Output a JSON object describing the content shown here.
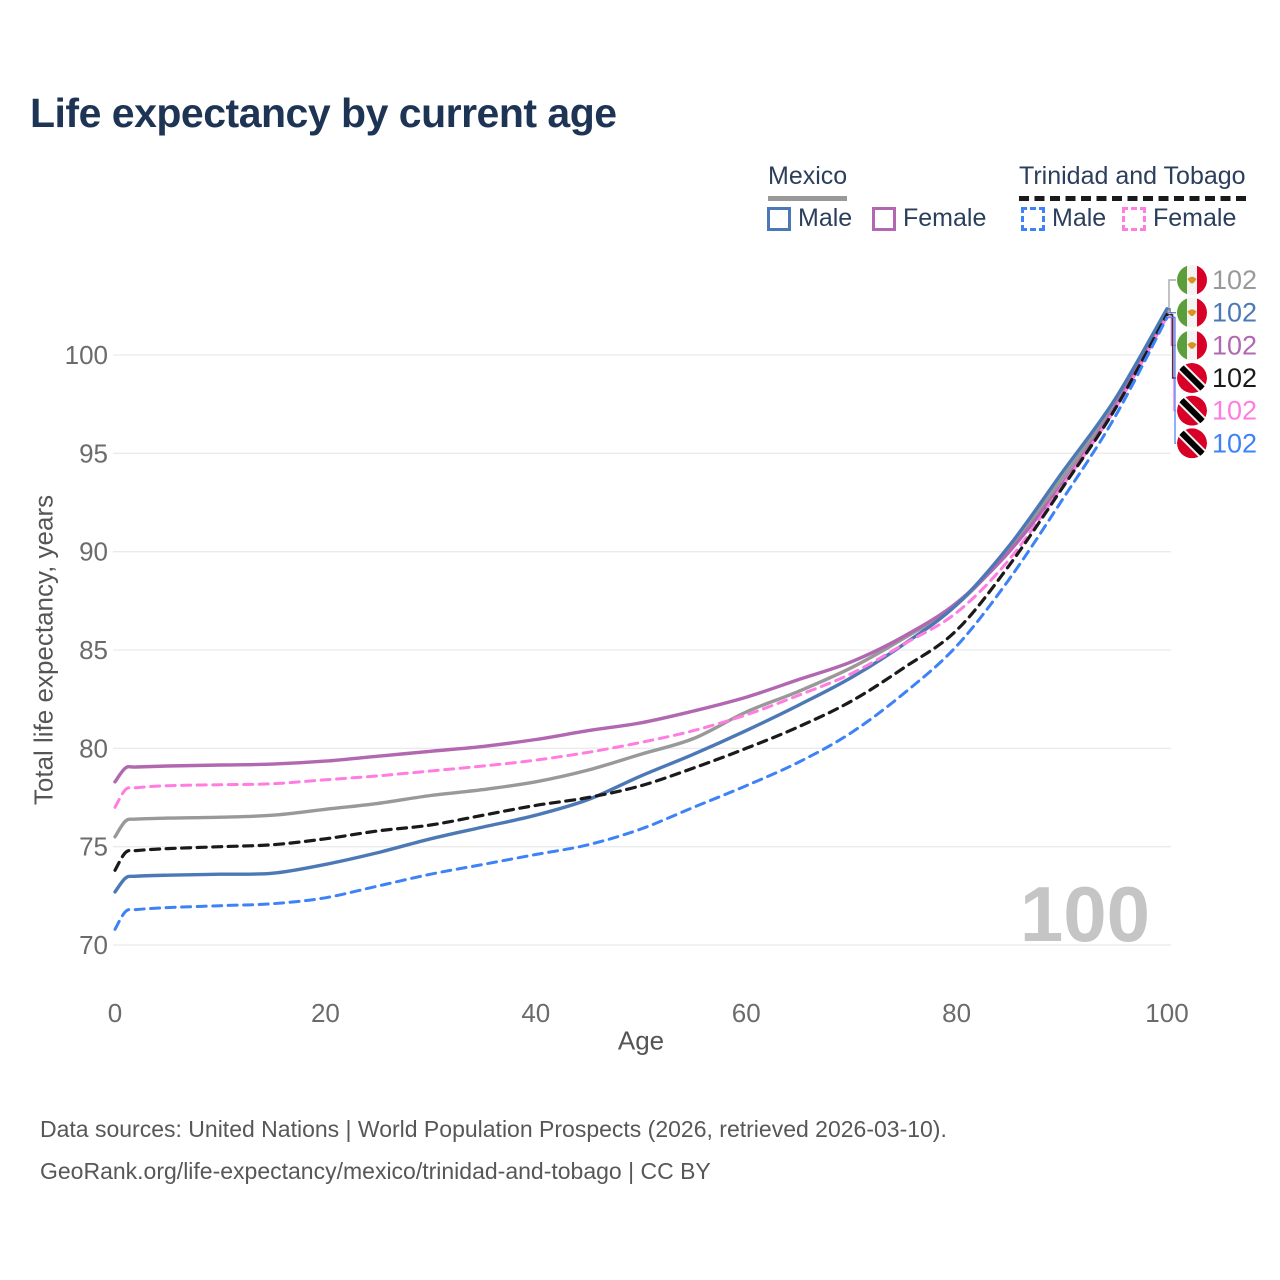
{
  "title": "Life expectancy by current age",
  "legend": {
    "mexico": {
      "label": "Mexico",
      "male": "Male",
      "female": "Female"
    },
    "trinidad": {
      "label": "Trinidad and Tobago",
      "male": "Male",
      "female": "Female"
    }
  },
  "watermark": "100",
  "footer": {
    "line1": "Data sources: United Nations | World Population Prospects (2026, retrieved 2026-03-10).",
    "line2": "GeoRank.org/life-expectancy/mexico/trinidad-and-tobago | CC BY"
  },
  "chart_data": {
    "type": "line",
    "title": "Life expectancy by current age",
    "xlabel": "Age",
    "ylabel": "Total life expectancy, years",
    "xlim": [
      0,
      100
    ],
    "ylim": [
      70,
      102.5
    ],
    "x_ticks": [
      0,
      20,
      40,
      60,
      80,
      100
    ],
    "y_ticks": [
      70,
      75,
      80,
      85,
      90,
      95,
      100
    ],
    "grid": "horizontal",
    "legend_position": "top-right",
    "x": [
      0,
      1,
      2,
      5,
      10,
      15,
      20,
      25,
      30,
      35,
      40,
      45,
      50,
      55,
      60,
      65,
      70,
      75,
      80,
      85,
      90,
      95,
      100
    ],
    "series": [
      {
        "name": "Mexico — Both sexes",
        "country": "Mexico",
        "sex": "both",
        "style": "solid",
        "color": "#999999",
        "width": 3.4,
        "flag": "mexico",
        "end_label": "102",
        "label_slot": 0,
        "values": [
          75.5,
          76.3,
          76.4,
          76.45,
          76.5,
          76.6,
          76.9,
          77.2,
          77.6,
          77.9,
          78.3,
          78.9,
          79.7,
          80.5,
          81.85,
          82.9,
          84.1,
          85.6,
          87.3,
          90.1,
          93.7,
          97.5,
          102.25
        ]
      },
      {
        "name": "Mexico — Female",
        "country": "Mexico",
        "sex": "female",
        "style": "solid",
        "color": "#b168b1",
        "width": 3.4,
        "flag": "mexico",
        "end_label": "102",
        "label_slot": 2,
        "values": [
          78.3,
          79.0,
          79.05,
          79.1,
          79.15,
          79.2,
          79.35,
          79.6,
          79.85,
          80.1,
          80.45,
          80.9,
          81.3,
          81.9,
          82.6,
          83.5,
          84.4,
          85.7,
          87.4,
          90.0,
          93.4,
          97.3,
          102.15
        ]
      },
      {
        "name": "Mexico — Male",
        "country": "Mexico",
        "sex": "male",
        "style": "solid",
        "color": "#4c79b5",
        "width": 3.4,
        "flag": "mexico",
        "end_label": "102",
        "label_slot": 1,
        "values": [
          72.7,
          73.4,
          73.5,
          73.55,
          73.6,
          73.65,
          74.1,
          74.7,
          75.4,
          76.0,
          76.6,
          77.4,
          78.6,
          79.7,
          80.9,
          82.2,
          83.6,
          85.3,
          87.3,
          90.3,
          94.0,
          97.7,
          102.35
        ]
      },
      {
        "name": "Trinidad and Tobago — Female",
        "country": "Trinidad and Tobago",
        "sex": "female",
        "style": "dashed",
        "color": "#ff7de1",
        "width": 3,
        "flag": "trinidad",
        "end_label": "102",
        "label_slot": 4,
        "values": [
          77.0,
          77.9,
          78.0,
          78.1,
          78.15,
          78.2,
          78.4,
          78.6,
          78.85,
          79.1,
          79.4,
          79.8,
          80.3,
          80.9,
          81.7,
          82.7,
          83.8,
          85.3,
          86.9,
          89.6,
          93.3,
          97.2,
          101.95
        ]
      },
      {
        "name": "Trinidad and Tobago — Both sexes",
        "country": "Trinidad and Tobago",
        "sex": "both",
        "style": "dashed",
        "color": "#1a1a1a",
        "width": 3.2,
        "flag": "trinidad",
        "end_label": "102",
        "label_slot": 3,
        "values": [
          73.8,
          74.7,
          74.8,
          74.9,
          75.0,
          75.1,
          75.4,
          75.8,
          76.1,
          76.6,
          77.1,
          77.5,
          78.1,
          79.0,
          80.0,
          81.1,
          82.4,
          84.1,
          86.0,
          89.3,
          93.2,
          97.2,
          102.05
        ]
      },
      {
        "name": "Trinidad and Tobago — Male",
        "country": "Trinidad and Tobago",
        "sex": "male",
        "style": "dashed",
        "color": "#3e82f7",
        "width": 3,
        "flag": "trinidad",
        "end_label": "102",
        "label_slot": 5,
        "values": [
          70.8,
          71.7,
          71.8,
          71.9,
          72.0,
          72.1,
          72.4,
          73.0,
          73.6,
          74.1,
          74.6,
          75.1,
          75.9,
          77.0,
          78.1,
          79.3,
          80.8,
          82.8,
          85.2,
          88.6,
          92.6,
          96.8,
          101.9
        ]
      }
    ]
  }
}
